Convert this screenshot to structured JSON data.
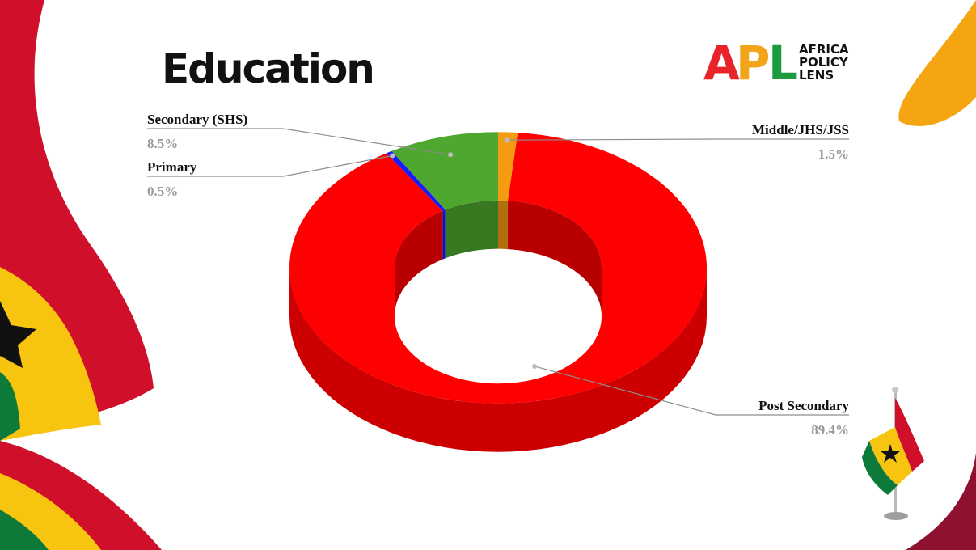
{
  "page": {
    "title": "Education",
    "logo": {
      "mark": "APL",
      "words": [
        "AFRICA",
        "POLICY",
        "LENS"
      ]
    }
  },
  "chart_data": {
    "type": "pie",
    "variant": "3d-donut",
    "title": "Education",
    "categories": [
      "Middle/JHS/JSS",
      "Post Secondary",
      "Primary",
      "Secondary (SHS)"
    ],
    "values": [
      1.5,
      89.4,
      0.5,
      8.5
    ],
    "value_labels": [
      "1.5%",
      "89.4%",
      "0.5%",
      "8.5%"
    ],
    "colors": [
      "#f39c12",
      "#ff0000",
      "#1a1aff",
      "#4ea72e"
    ],
    "start_angle_deg": 0,
    "direction": "clockwise",
    "legend": "none"
  },
  "colors": {
    "ghana_red": "#d0102a",
    "ghana_gold": "#f7c510",
    "ghana_green": "#0e7a3a",
    "accent_orange": "#f5a412",
    "star": "#111111"
  }
}
